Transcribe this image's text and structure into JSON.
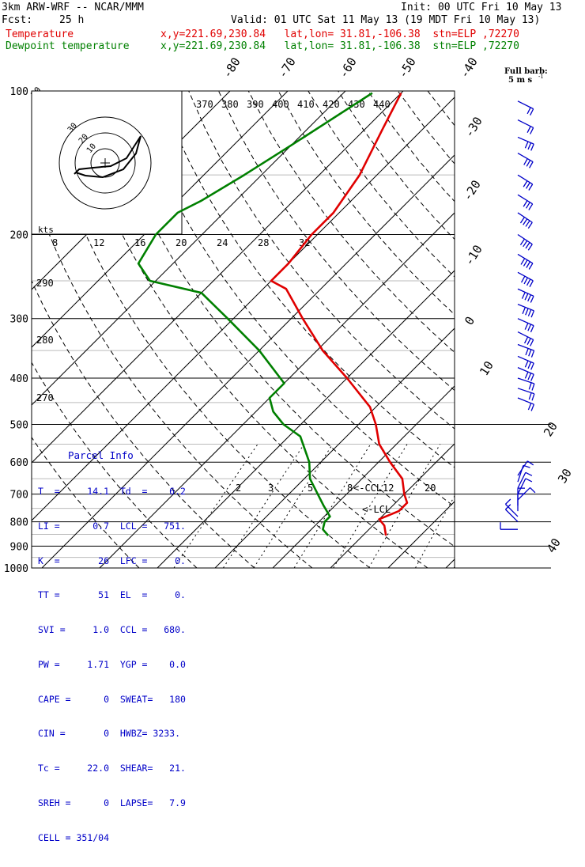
{
  "header": {
    "model": "3km ARW-WRF -- NCAR/MMM",
    "init": "Init: 00 UTC Fri 10 May 13",
    "fcst_label": "Fcst:",
    "fcst_value": "25 h",
    "valid": "Valid: 01 UTC Sat 11 May 13 (19 MDT Fri 10 May 13)",
    "temp_label": "Temperature",
    "temp_info": "x,y=221.69,230.84   lat,lon= 31.81,-106.38  stn=ELP ,72270",
    "dew_label": "Dewpoint temperature",
    "dew_info": "x,y=221.69,230.84   lat,lon= 31.81,-106.38  stn=ELP ,72270"
  },
  "barb_legend": {
    "line1": "Full barb:",
    "line2": "5 m s",
    "exp": "-1"
  },
  "colors": {
    "temperature": "#e00000",
    "dewpoint": "#008000",
    "parcel": "#0000c8",
    "winds": "#0000c8"
  },
  "chart_data": {
    "type": "line",
    "pressure_levels": [
      "100",
      "200",
      "300",
      "400",
      "500",
      "600",
      "700",
      "800",
      "900",
      "1000"
    ],
    "isotherm_labels": [
      "-80",
      "-70",
      "-60",
      "-50",
      "-40",
      "-30",
      "-20",
      "-10",
      "0",
      "10",
      "20",
      "30",
      "40"
    ],
    "theta_e_labels": [
      "370",
      "380",
      "390",
      "400",
      "410",
      "420",
      "430",
      "440"
    ],
    "theta_labels": [
      "290",
      "280",
      "270"
    ],
    "theta_corner_label": "30",
    "mixing_ratio_labels": [
      "2",
      "3",
      "5",
      "8",
      "12",
      "20"
    ],
    "ccl_label": "<-CCL",
    "lcl_label": "<-LCL",
    "hodograph": {
      "speed_labels": [
        "8",
        "12",
        "16",
        "20",
        "24",
        "28",
        "32"
      ],
      "kts_label": "kts",
      "ring_labels": [
        "30",
        "20",
        "10"
      ]
    },
    "series": [
      {
        "name": "Temperature",
        "points": [
          [
            101,
            -60
          ],
          [
            120,
            -57
          ],
          [
            150,
            -53
          ],
          [
            180,
            -51
          ],
          [
            200,
            -51
          ],
          [
            230,
            -50
          ],
          [
            250,
            -50
          ],
          [
            260,
            -46
          ],
          [
            300,
            -38
          ],
          [
            350,
            -29
          ],
          [
            400,
            -20
          ],
          [
            460,
            -11
          ],
          [
            500,
            -7
          ],
          [
            550,
            -3
          ],
          [
            600,
            2
          ],
          [
            650,
            7
          ],
          [
            700,
            10
          ],
          [
            730,
            12
          ],
          [
            760,
            12
          ],
          [
            790,
            10
          ],
          [
            815,
            12
          ],
          [
            855,
            14
          ]
        ]
      },
      {
        "name": "Dewpoint temperature",
        "points": [
          [
            101,
            -65
          ],
          [
            130,
            -70
          ],
          [
            150,
            -73
          ],
          [
            170,
            -76
          ],
          [
            180,
            -78
          ],
          [
            200,
            -78
          ],
          [
            230,
            -76
          ],
          [
            250,
            -71
          ],
          [
            265,
            -60
          ],
          [
            300,
            -51
          ],
          [
            350,
            -40
          ],
          [
            410,
            -30
          ],
          [
            440,
            -30
          ],
          [
            470,
            -27
          ],
          [
            500,
            -23
          ],
          [
            530,
            -18
          ],
          [
            600,
            -12
          ],
          [
            650,
            -9
          ],
          [
            700,
            -5
          ],
          [
            740,
            -2
          ],
          [
            780,
            1
          ],
          [
            800,
            1
          ],
          [
            830,
            2
          ],
          [
            855,
            4
          ]
        ]
      }
    ],
    "wind_barbs": [
      {
        "p": 105,
        "u": -6,
        "v": 3
      },
      {
        "p": 115,
        "u": -6,
        "v": 3
      },
      {
        "p": 125,
        "u": -7,
        "v": 3
      },
      {
        "p": 135,
        "u": -7,
        "v": 4
      },
      {
        "p": 150,
        "u": -8,
        "v": 5
      },
      {
        "p": 165,
        "u": -8,
        "v": 5
      },
      {
        "p": 180,
        "u": -9,
        "v": 6
      },
      {
        "p": 200,
        "u": -9,
        "v": 6
      },
      {
        "p": 220,
        "u": -10,
        "v": 6
      },
      {
        "p": 240,
        "u": -11,
        "v": 6
      },
      {
        "p": 260,
        "u": -11,
        "v": 5
      },
      {
        "p": 280,
        "u": -10,
        "v": 4
      },
      {
        "p": 300,
        "u": -9,
        "v": 4
      },
      {
        "p": 320,
        "u": -8,
        "v": 4
      },
      {
        "p": 340,
        "u": -8,
        "v": 3
      },
      {
        "p": 360,
        "u": -7,
        "v": 3
      },
      {
        "p": 380,
        "u": -7,
        "v": 3
      },
      {
        "p": 400,
        "u": -6,
        "v": 2
      },
      {
        "p": 420,
        "u": -6,
        "v": 2
      },
      {
        "p": 440,
        "u": -5,
        "v": 2
      },
      {
        "p": 640,
        "u": -2,
        "v": -3
      },
      {
        "p": 660,
        "u": -1,
        "v": -3
      },
      {
        "p": 680,
        "u": -1,
        "v": -2
      },
      {
        "p": 700,
        "u": -1,
        "v": -2
      },
      {
        "p": 720,
        "u": -1,
        "v": -1
      },
      {
        "p": 740,
        "u": 0,
        "v": -1
      },
      {
        "p": 760,
        "u": 0,
        "v": -1
      },
      {
        "p": 780,
        "u": 1,
        "v": -1
      },
      {
        "p": 800,
        "u": 1,
        "v": -1
      },
      {
        "p": 830,
        "u": 1,
        "v": 0
      }
    ]
  },
  "parcel_info": {
    "title": "Parcel Info",
    "rows": [
      "T  =     14.1  Td  =    6.2",
      "LI =      0.7  LCL =   751.",
      "K  =       26  LFC =     0.",
      "TT =       51  EL  =     0.",
      "SVI =     1.0  CCL =   680.",
      "PW =     1.71  YGP =    0.0",
      "CAPE =      0  SWEAT=   180",
      "CIN =       0  HWBZ= 3233.",
      "Tc =     22.0  SHEAR=   21.",
      "SREH =      0  LAPSE=   7.9",
      "CELL = 351/04"
    ]
  }
}
